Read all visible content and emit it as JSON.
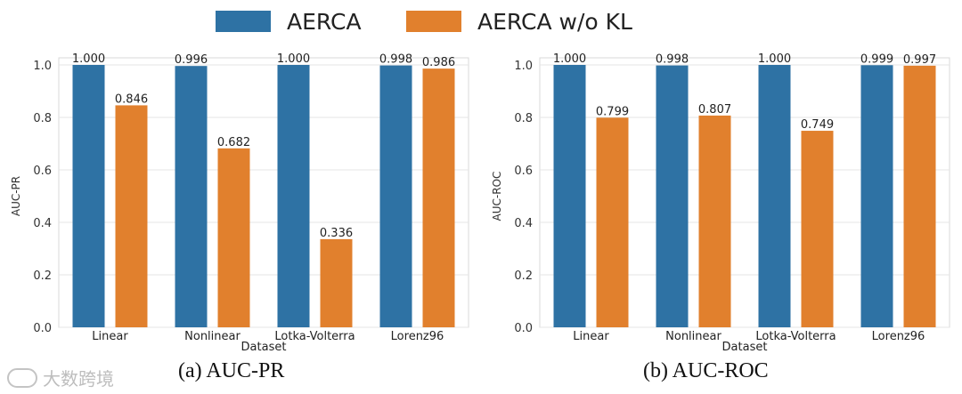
{
  "legend": [
    {
      "name": "AERCA",
      "color": "#2e72a4"
    },
    {
      "name": "AERCA w/o KL",
      "color": "#e1802d"
    }
  ],
  "watermark": {
    "text": "大数跨境"
  },
  "chart_data": [
    {
      "type": "bar",
      "caption": "(a) AUC-PR",
      "xlabel": "Dataset",
      "ylabel": "AUC-PR",
      "ylim": [
        0,
        1.0
      ],
      "yticks": [
        "0.0",
        "0.2",
        "0.4",
        "0.6",
        "0.8",
        "1.0"
      ],
      "categories": [
        "Linear",
        "Nonlinear",
        "Lotka-Volterra",
        "Lorenz96"
      ],
      "series": [
        {
          "name": "AERCA",
          "values": [
            1.0,
            0.996,
            1.0,
            0.998
          ],
          "labels": [
            "1.000",
            "0.996",
            "1.000",
            "0.998"
          ]
        },
        {
          "name": "AERCA w/o KL",
          "values": [
            0.846,
            0.682,
            0.336,
            0.986
          ],
          "labels": [
            "0.846",
            "0.682",
            "0.336",
            "0.986"
          ]
        }
      ]
    },
    {
      "type": "bar",
      "caption": "(b) AUC-ROC",
      "xlabel": "Dataset",
      "ylabel": "AUC-ROC",
      "ylim": [
        0,
        1.0
      ],
      "yticks": [
        "0.0",
        "0.2",
        "0.4",
        "0.6",
        "0.8",
        "1.0"
      ],
      "categories": [
        "Linear",
        "Nonlinear",
        "Lotka-Volterra",
        "Lorenz96"
      ],
      "series": [
        {
          "name": "AERCA",
          "values": [
            1.0,
            0.998,
            1.0,
            0.999
          ],
          "labels": [
            "1.000",
            "0.998",
            "1.000",
            "0.999"
          ]
        },
        {
          "name": "AERCA w/o KL",
          "values": [
            0.799,
            0.807,
            0.749,
            0.997
          ],
          "labels": [
            "0.799",
            "0.807",
            "0.749",
            "0.997"
          ]
        }
      ]
    }
  ]
}
